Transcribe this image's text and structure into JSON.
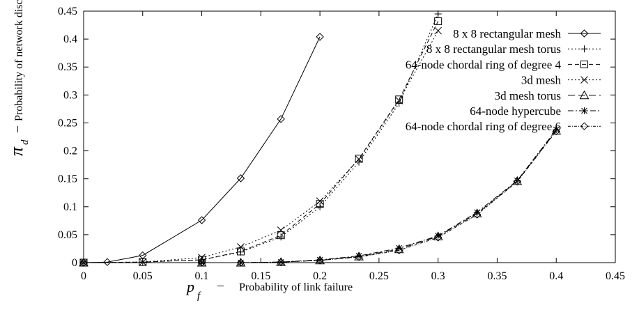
{
  "chart_data": {
    "type": "line",
    "xlabel": "Probability of link failure",
    "xlabel_symbol": "p",
    "xlabel_subscript": "f",
    "xlabel_dash": "–",
    "ylabel": "Probability of network disconnection",
    "ylabel_symbol": "π",
    "ylabel_subscript": "d",
    "ylabel_dash": "–",
    "xlim": [
      0,
      0.45
    ],
    "ylim": [
      0,
      0.45
    ],
    "xticks": [
      0,
      0.05,
      0.1,
      0.15,
      0.2,
      0.25,
      0.3,
      0.35,
      0.4,
      0.45
    ],
    "yticks": [
      0,
      0.05,
      0.1,
      0.15,
      0.2,
      0.25,
      0.3,
      0.35,
      0.4,
      0.45
    ],
    "grid": false,
    "legend_position": "top-right",
    "series": [
      {
        "name": "8 x 8 rectangular mesh",
        "marker": "diamond",
        "dash": "solid",
        "points": [
          [
            0,
            0
          ],
          [
            0.02,
            0.001
          ],
          [
            0.05,
            0.013
          ],
          [
            0.1,
            0.076
          ],
          [
            0.133,
            0.151
          ],
          [
            0.167,
            0.257
          ],
          [
            0.2,
            0.404
          ]
        ]
      },
      {
        "name": "8 x 8 rectangular mesh torus",
        "marker": "plus",
        "dash": "dotted",
        "points": [
          [
            0,
            0
          ],
          [
            0.05,
            0.001
          ],
          [
            0.1,
            0.005
          ],
          [
            0.133,
            0.019
          ],
          [
            0.167,
            0.046
          ],
          [
            0.2,
            0.1
          ],
          [
            0.233,
            0.18
          ],
          [
            0.267,
            0.285
          ],
          [
            0.3,
            0.445
          ]
        ]
      },
      {
        "name": "64-node chordal ring of degree 4",
        "marker": "square",
        "dash": "dashed",
        "points": [
          [
            0,
            0
          ],
          [
            0.05,
            0.001
          ],
          [
            0.1,
            0.005
          ],
          [
            0.133,
            0.02
          ],
          [
            0.167,
            0.049
          ],
          [
            0.2,
            0.105
          ],
          [
            0.233,
            0.186
          ],
          [
            0.267,
            0.292
          ],
          [
            0.3,
            0.432
          ]
        ]
      },
      {
        "name": "3d mesh",
        "marker": "cross",
        "dash": "dotted",
        "points": [
          [
            0,
            0
          ],
          [
            0.05,
            0.001
          ],
          [
            0.1,
            0.009
          ],
          [
            0.133,
            0.028
          ],
          [
            0.167,
            0.058
          ],
          [
            0.2,
            0.11
          ],
          [
            0.233,
            0.185
          ],
          [
            0.267,
            0.29
          ],
          [
            0.3,
            0.415
          ]
        ]
      },
      {
        "name": "3d mesh torus",
        "marker": "triangle",
        "dash": "longdash",
        "points": [
          [
            0,
            0
          ],
          [
            0.1,
            0
          ],
          [
            0.133,
            0
          ],
          [
            0.167,
            0.001
          ],
          [
            0.2,
            0.004
          ],
          [
            0.233,
            0.011
          ],
          [
            0.267,
            0.024
          ],
          [
            0.3,
            0.047
          ],
          [
            0.333,
            0.088
          ],
          [
            0.367,
            0.146
          ],
          [
            0.4,
            0.236
          ]
        ]
      },
      {
        "name": "64-node hypercube",
        "marker": "asterisk",
        "dash": "dashdot",
        "points": [
          [
            0,
            0
          ],
          [
            0.1,
            0
          ],
          [
            0.133,
            0
          ],
          [
            0.167,
            0.001
          ],
          [
            0.2,
            0.005
          ],
          [
            0.233,
            0.012
          ],
          [
            0.267,
            0.026
          ],
          [
            0.3,
            0.048
          ],
          [
            0.333,
            0.09
          ],
          [
            0.367,
            0.147
          ],
          [
            0.4,
            0.238
          ]
        ]
      },
      {
        "name": "64-node chordal ring of degree 6",
        "marker": "diamond",
        "dash": "dashdot2",
        "points": [
          [
            0,
            0
          ],
          [
            0.1,
            0
          ],
          [
            0.133,
            0
          ],
          [
            0.167,
            0.001
          ],
          [
            0.2,
            0.004
          ],
          [
            0.233,
            0.01
          ],
          [
            0.267,
            0.022
          ],
          [
            0.3,
            0.045
          ],
          [
            0.333,
            0.086
          ],
          [
            0.367,
            0.145
          ],
          [
            0.4,
            0.235
          ]
        ]
      }
    ]
  }
}
